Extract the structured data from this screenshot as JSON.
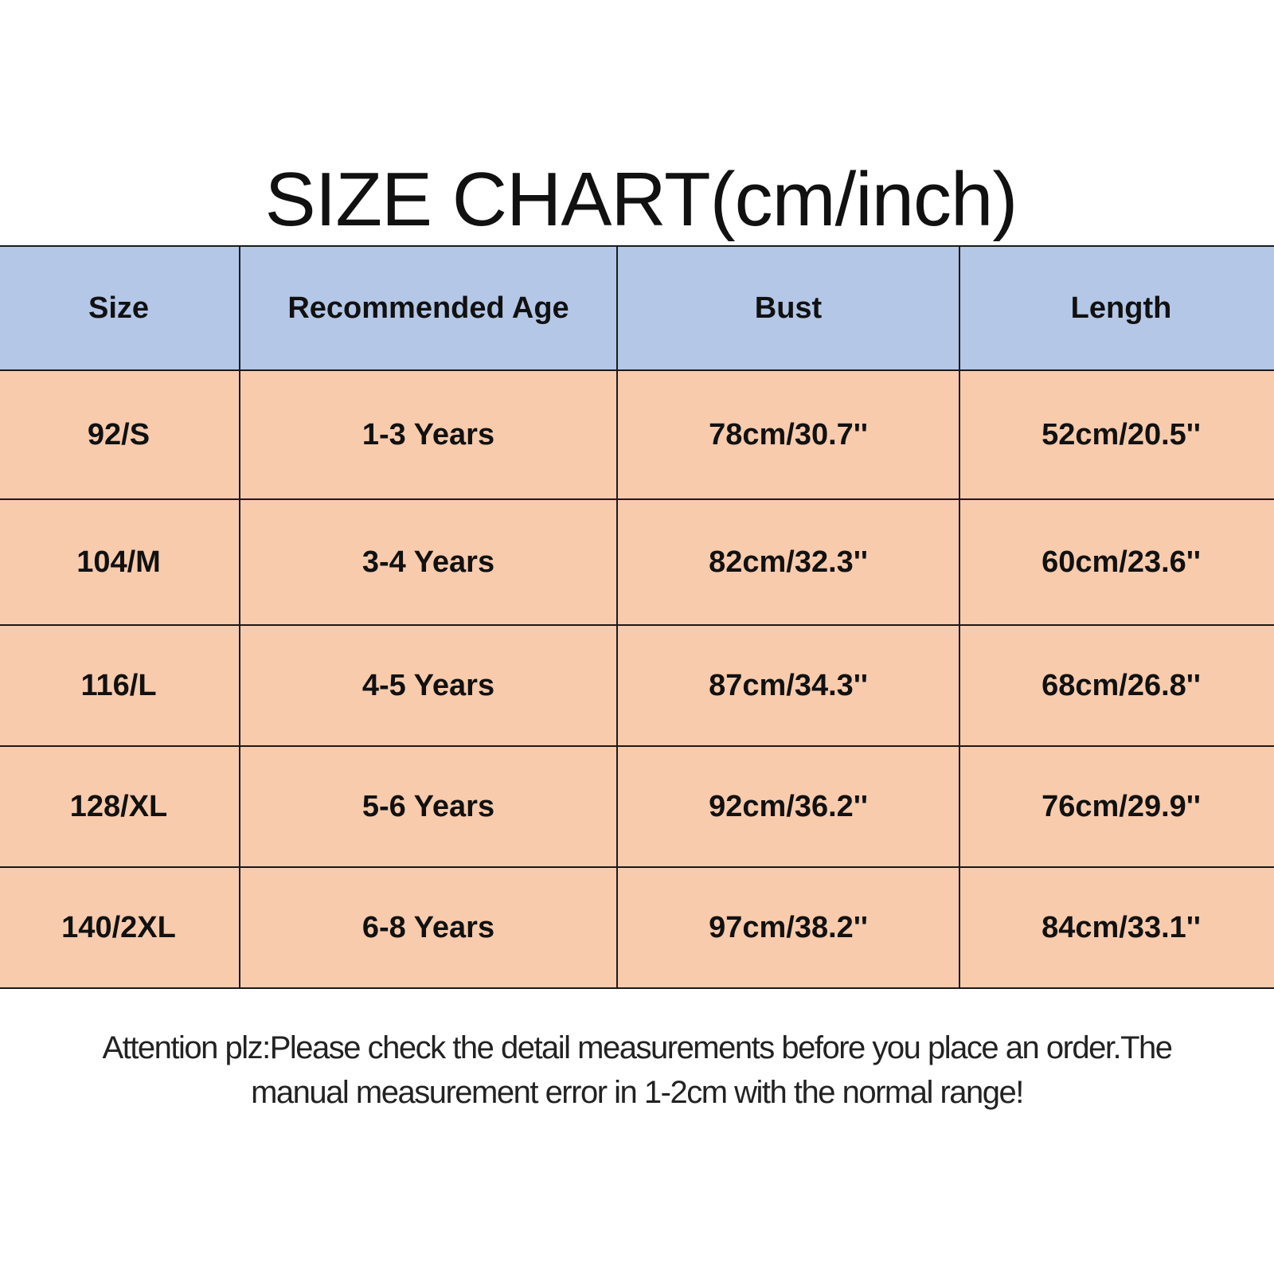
{
  "title": "SIZE CHART(cm/inch)",
  "colors": {
    "header_bg": "#b4c7e7",
    "row_bg": "#f8cbad",
    "border": "#1a1a1a"
  },
  "table": {
    "headers": [
      "Size",
      "Recommended Age",
      "Bust",
      "Length"
    ],
    "rows": [
      [
        "92/S",
        "1-3 Years",
        "78cm/30.7''",
        "52cm/20.5''"
      ],
      [
        "104/M",
        "3-4 Years",
        "82cm/32.3''",
        "60cm/23.6''"
      ],
      [
        "116/L",
        "4-5 Years",
        "87cm/34.3''",
        "68cm/26.8''"
      ],
      [
        "128/XL",
        "5-6 Years",
        "92cm/36.2''",
        "76cm/29.9''"
      ],
      [
        "140/2XL",
        "6-8 Years",
        "97cm/38.2''",
        "84cm/33.1''"
      ]
    ]
  },
  "note": {
    "line1": "Attention plz:Please check the detail measurements before you place an order.The",
    "line2": "manual measurement error in 1-2cm with the normal range!"
  }
}
